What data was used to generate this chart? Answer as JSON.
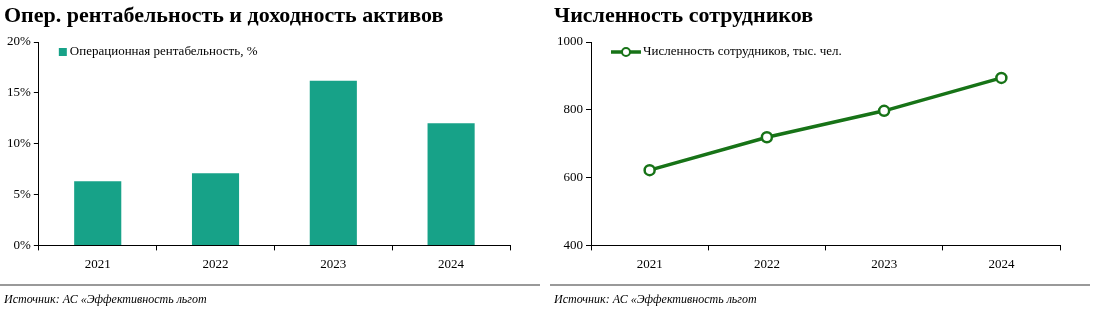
{
  "chart_data": [
    {
      "type": "bar",
      "title": "Опер. рентабельность и доходность активов",
      "categories": [
        "2021",
        "2022",
        "2023",
        "2024"
      ],
      "series": [
        {
          "name": "Операционная рентабельность, %",
          "color": "#17a288",
          "values": [
            6.3,
            7.1,
            16.2,
            12.0
          ]
        }
      ],
      "ylim": [
        0,
        20
      ],
      "yticks": [
        {
          "value": 0,
          "label": "0%"
        },
        {
          "value": 5,
          "label": "5%"
        },
        {
          "value": 10,
          "label": "10%"
        },
        {
          "value": 15,
          "label": "15%"
        },
        {
          "value": 20,
          "label": "20%"
        }
      ],
      "legend": "top left",
      "annotations": [
        "Источник: АС «Эффективность льгот"
      ]
    },
    {
      "type": "line",
      "title": "Численность сотрудников",
      "categories": [
        "2021",
        "2022",
        "2023",
        "2024"
      ],
      "series": [
        {
          "name": "Численность сотрудников, тыс. чел.",
          "color": "#177317",
          "values": [
            622,
            719,
            797,
            894
          ]
        }
      ],
      "ylim": [
        400,
        1000
      ],
      "yticks": [
        400,
        600,
        800,
        1000
      ],
      "marker": "circle",
      "line_style": "solid",
      "legend": "top left",
      "annotations": [
        "Источник: АС «Эффективность льгот"
      ]
    }
  ]
}
